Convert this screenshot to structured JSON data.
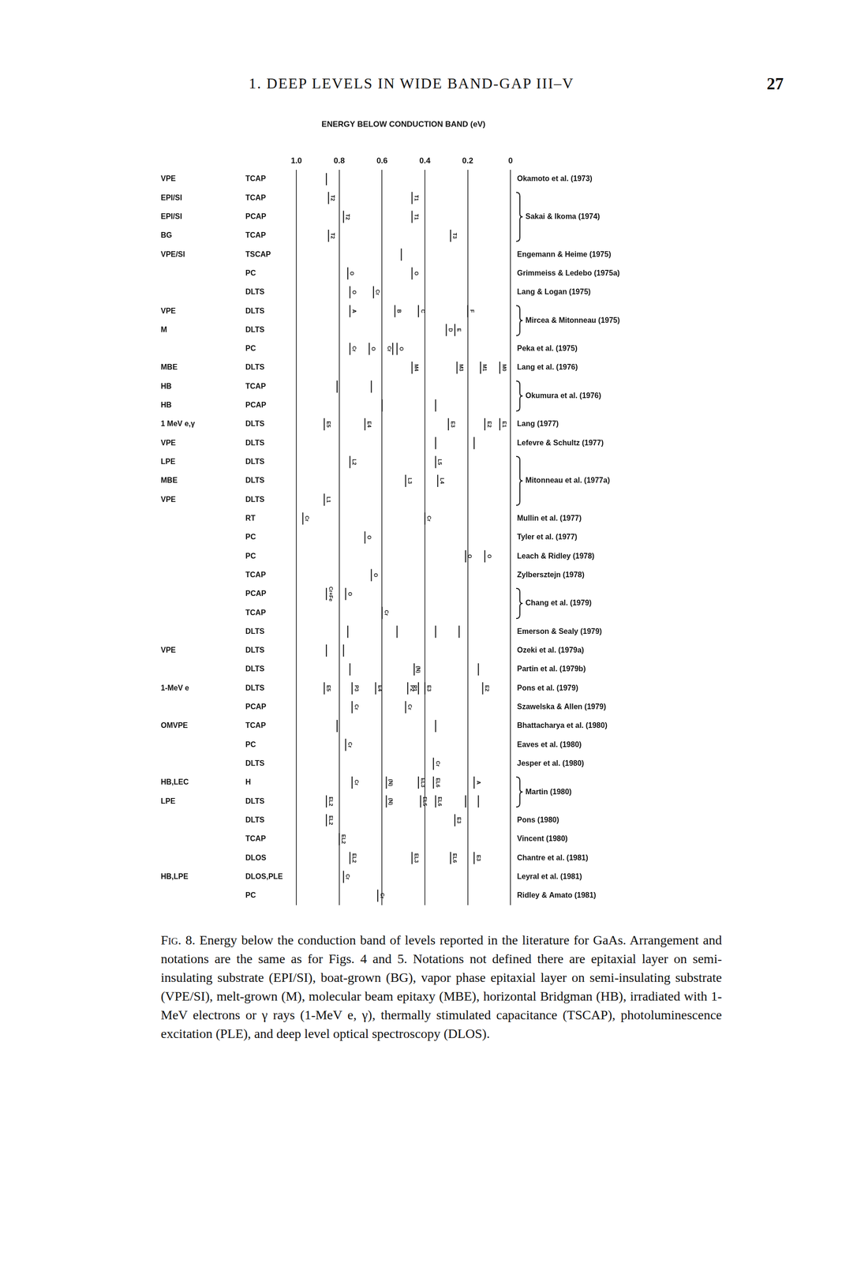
{
  "header": {
    "running_title": "1. DEEP LEVELS IN WIDE BAND-GAP III–V",
    "page_number": "27"
  },
  "chart_data": {
    "type": "scatter",
    "xlabel": "ENERGY BELOW CONDUCTION BAND (eV)",
    "xlim": [
      1.0,
      0
    ],
    "xticks": [
      {
        "value": 1.0,
        "label": "1.0"
      },
      0.8,
      0.6,
      0.4,
      0.2,
      0
    ],
    "grid": true,
    "tick_labels": "x",
    "references": [
      {
        "name": "Okamoto et al. (1973)",
        "rows": [
          {
            "material": "VPE",
            "method": "TCAP",
            "levels": [
              {
                "x": 0.86,
                "label": null
              }
            ]
          }
        ]
      },
      {
        "name": "Sakai & Ikoma (1974)",
        "rows": [
          {
            "material": "EPI/SI",
            "method": "TCAP",
            "levels": [
              {
                "x": 0.85,
                "label": "T2"
              },
              {
                "x": 0.46,
                "label": "T1"
              }
            ]
          },
          {
            "material": "EPI/SI",
            "method": "PCAP",
            "levels": [
              {
                "x": 0.78,
                "label": "T2"
              },
              {
                "x": 0.46,
                "label": "T1"
              }
            ]
          },
          {
            "material": "BG",
            "method": "TCAP",
            "levels": [
              {
                "x": 0.85,
                "label": "T2"
              },
              {
                "x": 0.28,
                "label": "T3"
              }
            ]
          }
        ]
      },
      {
        "name": "Engemann & Heime (1975)",
        "rows": [
          {
            "material": "VPE/SI",
            "method": "TSCAP",
            "levels": [
              {
                "x": 0.51,
                "label": null
              }
            ]
          }
        ]
      },
      {
        "name": "Grimmeiss & Ledebo (1975a)",
        "rows": [
          {
            "material": null,
            "method": "PC",
            "levels": [
              {
                "x": 0.76,
                "label": "O"
              },
              {
                "x": 0.46,
                "label": "O"
              }
            ]
          }
        ]
      },
      {
        "name": "Lang & Logan (1975)",
        "rows": [
          {
            "material": null,
            "method": "DLTS",
            "levels": [
              {
                "x": 0.75,
                "label": "O"
              },
              {
                "x": 0.64,
                "label": "Cr"
              }
            ]
          }
        ]
      },
      {
        "name": "Mircea & Mitonneau (1975)",
        "rows": [
          {
            "material": "VPE",
            "method": "DLTS",
            "levels": [
              {
                "x": 0.75,
                "label": "A"
              },
              {
                "x": 0.54,
                "label": "B"
              },
              {
                "x": 0.43,
                "label": "C"
              },
              {
                "x": 0.2,
                "label": "F"
              }
            ]
          },
          {
            "material": "M",
            "method": "DLTS",
            "levels": [
              {
                "x": 0.3,
                "label": "D"
              },
              {
                "x": 0.26,
                "label": "E"
              }
            ]
          }
        ]
      },
      {
        "name": "Peka et al. (1975)",
        "rows": [
          {
            "material": null,
            "method": "PC",
            "levels": [
              {
                "x": 0.75,
                "label": "Cr"
              },
              {
                "x": 0.66,
                "label": "O"
              },
              {
                "x": 0.55,
                "label": "Cr"
              },
              {
                "x": 0.53,
                "label": "O"
              }
            ]
          }
        ]
      },
      {
        "name": "Lang et al. (1976)",
        "rows": [
          {
            "material": "MBE",
            "method": "DLTS",
            "levels": [
              {
                "x": 0.46,
                "label": "M4"
              },
              {
                "x": 0.25,
                "label": "M3"
              },
              {
                "x": 0.14,
                "label": "M1"
              },
              {
                "x": 0.05,
                "label": "M0"
              }
            ]
          }
        ]
      },
      {
        "name": "Okumura et al. (1976)",
        "rows": [
          {
            "material": "HB",
            "method": "TCAP",
            "levels": [
              {
                "x": 0.81,
                "label": null
              },
              {
                "x": 0.65,
                "label": null
              }
            ]
          },
          {
            "material": "HB",
            "method": "PCAP",
            "levels": [
              {
                "x": 0.6,
                "label": null
              },
              {
                "x": 0.35,
                "label": null
              }
            ]
          }
        ]
      },
      {
        "name": "Lang (1977)",
        "rows": [
          {
            "material": "1 MeV e,γ",
            "method": "DLTS",
            "levels": [
              {
                "x": 0.87,
                "label": "E5"
              },
              {
                "x": 0.68,
                "label": "E4"
              },
              {
                "x": 0.29,
                "label": "E3"
              },
              {
                "x": 0.12,
                "label": "E2"
              },
              {
                "x": 0.05,
                "label": "E1"
              }
            ]
          }
        ]
      },
      {
        "name": "Lefevre & Schultz (1977)",
        "rows": [
          {
            "material": "VPE",
            "method": "DLTS",
            "levels": [
              {
                "x": 0.35,
                "label": null
              },
              {
                "x": 0.17,
                "label": null
              }
            ]
          }
        ]
      },
      {
        "name": "Mitonneau et al. (1977a)",
        "rows": [
          {
            "material": "LPE",
            "method": "DLTS",
            "levels": [
              {
                "x": 0.75,
                "label": "L2"
              },
              {
                "x": 0.35,
                "label": "L5"
              }
            ]
          },
          {
            "material": "MBE",
            "method": "DLTS",
            "levels": [
              {
                "x": 0.49,
                "label": "L3"
              },
              {
                "x": 0.34,
                "label": "L4"
              }
            ]
          },
          {
            "material": "VPE",
            "method": "DLTS",
            "levels": [
              {
                "x": 0.87,
                "label": "L1"
              }
            ]
          }
        ]
      },
      {
        "name": "Mullin et al. (1977)",
        "rows": [
          {
            "material": null,
            "method": "RT",
            "levels": [
              {
                "x": 0.97,
                "label": "Cr"
              },
              {
                "x": 0.4,
                "label": "Cr"
              }
            ]
          }
        ]
      },
      {
        "name": "Tyler et al. (1977)",
        "rows": [
          {
            "material": null,
            "method": "PC",
            "levels": [
              {
                "x": 0.68,
                "label": "O"
              }
            ]
          }
        ]
      },
      {
        "name": "Leach & Ridley (1978)",
        "rows": [
          {
            "material": null,
            "method": "PC",
            "levels": [
              {
                "x": 0.21,
                "label": "O"
              },
              {
                "x": 0.12,
                "label": "O"
              }
            ]
          }
        ]
      },
      {
        "name": "Zylbersztejn (1978)",
        "rows": [
          {
            "material": null,
            "method": "TCAP",
            "levels": [
              {
                "x": 0.65,
                "label": "O"
              }
            ]
          }
        ]
      },
      {
        "name": "Chang et al. (1979)",
        "rows": [
          {
            "material": null,
            "method": "PCAP",
            "levels": [
              {
                "x": 0.86,
                "label": "Cr+Fe"
              },
              {
                "x": 0.77,
                "label": "O"
              }
            ]
          },
          {
            "material": null,
            "method": "TCAP",
            "levels": [
              {
                "x": 0.6,
                "label": "Cr"
              }
            ]
          }
        ]
      },
      {
        "name": "Emerson & Sealy (1979)",
        "rows": [
          {
            "material": null,
            "method": "DLTS",
            "levels": [
              {
                "x": 0.76,
                "label": null
              },
              {
                "x": 0.53,
                "label": null
              },
              {
                "x": 0.35,
                "label": null
              },
              {
                "x": 0.24,
                "label": null
              }
            ]
          }
        ]
      },
      {
        "name": "Ozeki et al. (1979a)",
        "rows": [
          {
            "material": "VPE",
            "method": "DLTS",
            "levels": [
              {
                "x": 0.86,
                "label": null
              },
              {
                "x": 0.78,
                "label": null
              }
            ]
          }
        ]
      },
      {
        "name": "Partin et al. (1979b)",
        "rows": [
          {
            "material": null,
            "method": "DLTS",
            "levels": [
              {
                "x": 0.75,
                "label": null
              },
              {
                "x": 0.45,
                "label": "(N)"
              },
              {
                "x": 0.15,
                "label": null
              }
            ]
          }
        ]
      },
      {
        "name": "Pons et al. (1979)",
        "rows": [
          {
            "material": "1-MeV e",
            "method": "DLTS",
            "levels": [
              {
                "x": 0.87,
                "label": "E5"
              },
              {
                "x": 0.74,
                "label": "P3"
              },
              {
                "x": 0.63,
                "label": "E4"
              },
              {
                "x": 0.48,
                "label": "P2"
              },
              {
                "x": 0.43,
                "label": "P1"
              },
              {
                "x": 0.4,
                "label": "E3"
              },
              {
                "x": 0.13,
                "label": "E2"
              }
            ]
          }
        ]
      },
      {
        "name": "Szawelska & Allen (1979)",
        "rows": [
          {
            "material": null,
            "method": "PCAP",
            "levels": [
              {
                "x": 0.74,
                "label": "Cr"
              },
              {
                "x": 0.49,
                "label": "Cr"
              }
            ]
          }
        ]
      },
      {
        "name": "Bhattacharya et al. (1980)",
        "rows": [
          {
            "material": "OMVPE",
            "method": "TCAP",
            "levels": [
              {
                "x": 0.81,
                "label": null
              },
              {
                "x": 0.35,
                "label": null
              }
            ]
          }
        ]
      },
      {
        "name": "Eaves et al. (1980)",
        "rows": [
          {
            "material": null,
            "method": "PC",
            "levels": [
              {
                "x": 0.77,
                "label": "Cr"
              }
            ]
          }
        ]
      },
      {
        "name": "Jesper et al. (1980)",
        "rows": [
          {
            "material": null,
            "method": "DLTS",
            "levels": [
              {
                "x": 0.36,
                "label": "Cr"
              }
            ]
          }
        ]
      },
      {
        "name": "Martin (1980)",
        "rows": [
          {
            "material": "HB,LEC",
            "method": "H",
            "levels": [
              {
                "x": 0.74,
                "label": "Cr"
              },
              {
                "x": 0.58,
                "label": "(N)"
              },
              {
                "x": 0.43,
                "label": "EL3"
              },
              {
                "x": 0.36,
                "label": "EL6"
              },
              {
                "x": 0.17,
                "label": "A"
              }
            ]
          },
          {
            "material": "LPE",
            "method": "DLTS",
            "levels": [
              {
                "x": 0.86,
                "label": "EL2"
              },
              {
                "x": 0.58,
                "label": "(N)"
              },
              {
                "x": 0.42,
                "label": "EL5"
              },
              {
                "x": 0.35,
                "label": "EL6"
              },
              {
                "x": 0.21,
                "label": null
              },
              {
                "x": 0.15,
                "label": null
              }
            ]
          }
        ]
      },
      {
        "name": "Pons (1980)",
        "rows": [
          {
            "material": null,
            "method": "DLTS",
            "levels": [
              {
                "x": 0.86,
                "label": "EL2"
              },
              {
                "x": 0.26,
                "label": "E3"
              }
            ]
          }
        ]
      },
      {
        "name": "Vincent (1980)",
        "rows": [
          {
            "material": null,
            "method": "TCAP",
            "levels": [
              {
                "x": 0.8,
                "label": "EL2"
              }
            ]
          }
        ]
      },
      {
        "name": "Chantre et al. (1981)",
        "rows": [
          {
            "material": null,
            "method": "DLOS",
            "levels": [
              {
                "x": 0.75,
                "label": "EL2"
              },
              {
                "x": 0.46,
                "label": "EL3"
              },
              {
                "x": 0.28,
                "label": "EL6"
              },
              {
                "x": 0.17,
                "label": "E3"
              }
            ]
          }
        ]
      },
      {
        "name": "Leyral et al. (1981)",
        "rows": [
          {
            "material": "HB,LPE",
            "method": "DLOS,PLE",
            "levels": [
              {
                "x": 0.78,
                "label": "Cr"
              }
            ]
          }
        ]
      },
      {
        "name": "Ridley & Amato (1981)",
        "rows": [
          {
            "material": null,
            "method": "PC",
            "levels": [
              {
                "x": 0.62,
                "label": "Cr"
              }
            ]
          }
        ]
      }
    ]
  },
  "caption": {
    "label": "Fig. 8.",
    "text": "Energy below the conduction band of levels reported in the literature for GaAs. Arrangement and notations are the same as for Figs. 4 and 5. Notations not defined there are epitaxial layer on semi-insulating substrate (EPI/SI), boat-grown (BG), vapor phase epitaxial layer on semi-insulating substrate (VPE/SI), melt-grown (M), molecular beam epitaxy (MBE), horizontal Bridgman (HB), irradiated with 1-MeV electrons or γ rays (1-MeV e, γ), thermally stimulated capacitance (TSCAP), photoluminescence excitation (PLE), and deep level optical spectroscopy (DLOS)."
  }
}
